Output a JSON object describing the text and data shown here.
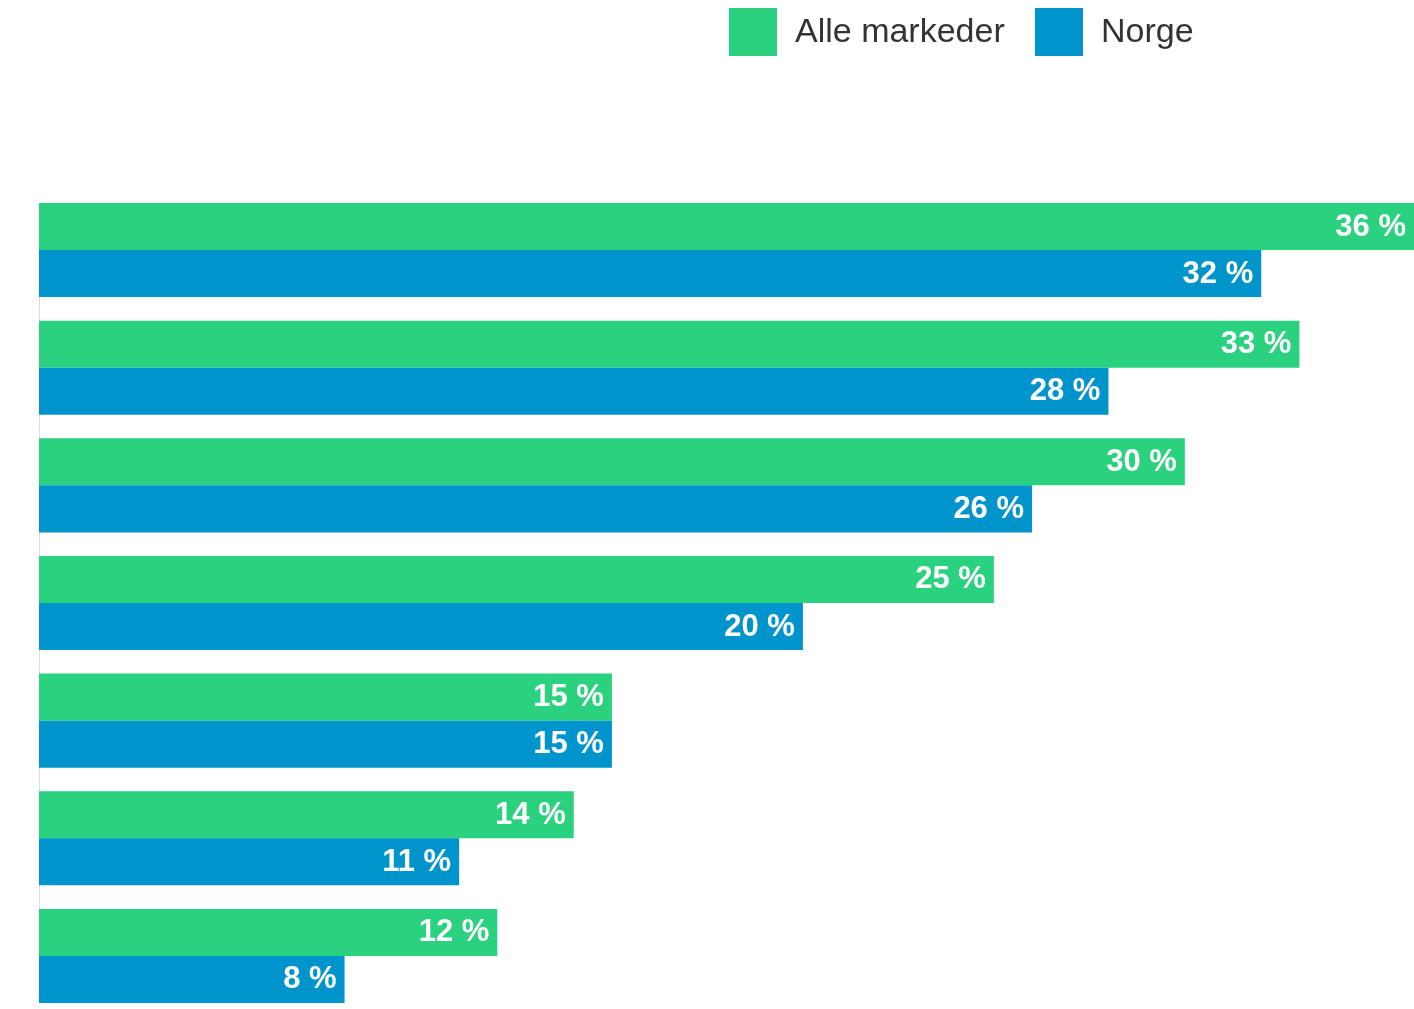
{
  "chart_data": {
    "type": "bar",
    "orientation": "horizontal",
    "categories": [
      null,
      null,
      null,
      null,
      null,
      null,
      null
    ],
    "series": [
      {
        "name": "Alle markeder",
        "color": "#2ad17f",
        "values": [
          36,
          33,
          30,
          25,
          15,
          14,
          12
        ],
        "value_labels": [
          "36 %",
          "33 %",
          "30 %",
          "25 %",
          "15 %",
          "14 %",
          "12 %"
        ]
      },
      {
        "name": "Norge",
        "color": "#0094cc",
        "values": [
          32,
          28,
          26,
          20,
          15,
          11,
          8
        ],
        "value_labels": [
          "32 %",
          "28 %",
          "26 %",
          "20 %",
          "15 %",
          "11 %",
          "8 %"
        ]
      }
    ],
    "legend": "top right",
    "tick_labels": false,
    "grid": false
  }
}
